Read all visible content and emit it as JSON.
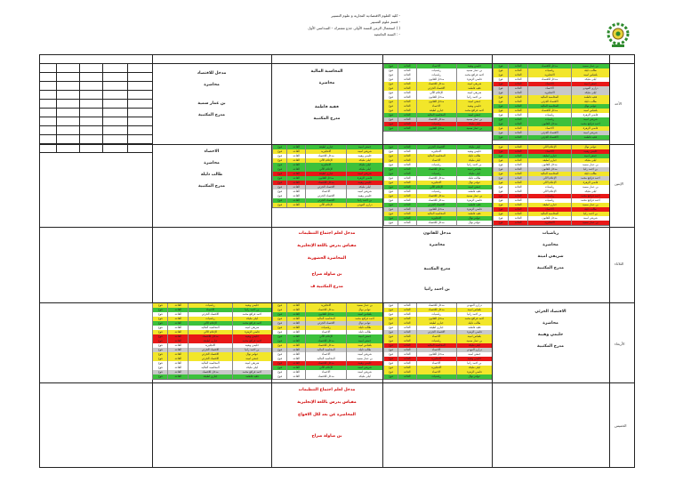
{
  "header": {
    "line1": "كلية العلوم الاقتصادية التجارية و علوم التسيير -",
    "line2": "قسم علوم التسيير -",
    "line3": "استعمال الزمن للسنة الأولى جذع مشترك - السداسي الأول ( )",
    "line4": "السنة الجامعية : -"
  },
  "days": [
    "الأحد",
    "الإثنين",
    "الثلاثاء",
    "الأربعاء",
    "الخميس"
  ],
  "lectures": {
    "sun_micro": [
      "مدخل للاقتصاد",
      "محاضرة",
      "بن عمار سمية",
      "مدرج المكتبية"
    ],
    "sun_accounting": [
      "المحاسبة المالية",
      "محاضرة",
      "فقيه فاطمة",
      "مدرج المكتبية"
    ],
    "mon_stats": [
      "الاحصاء",
      "محاضرة",
      "طالب دليلة",
      "مدرج المكتبية"
    ],
    "tue_mgmt": [
      "مدخل لعلم اجتماع التنظيمات",
      "مقياس يدرس باللغة الإنجليزية",
      "المحاضرة الحضورية",
      "بن صاولة صراح",
      "مدرج المكتبية ف"
    ],
    "tue_law": [
      "مدخل للقانون",
      "محاضرة",
      "مدرج المكتبية",
      "بن احمد رانيا"
    ],
    "tue_math": [
      "رياضيات",
      "محاضرة",
      "شريفي امينة",
      "مدرج المكتبية"
    ],
    "wed_macro": [
      "الاقتصاد الجزئي",
      "محاضرة",
      "حليمي وهيبة",
      "مدرج المكتبية"
    ],
    "thu_mgmt": [
      "مدخل لعلم اجتماع التنظيمات",
      "مقياس يدرس باللغة الإنجليزية",
      "المحاضرة عن بعد لكل الافواج",
      "بن صاولة صراح"
    ]
  },
  "tutorial": {
    "cells": [
      "فوج",
      "القاعة",
      "الاقتصاد الجزئي",
      "جباري لطيفة",
      "المحاسبة المالية",
      "مدخل للاقتصاد",
      "الاحصاء",
      "الانجليزية",
      "رياضيات",
      "مدخل للقانون",
      "الإعلام الآلي",
      "فقيه فاطمة",
      "بن عمار سمية",
      "طالب دليلة",
      "شريفي امينة",
      "حليمي وهيبة",
      "بن احمد رانيا",
      "عوامر نوال",
      "بلعباس امينة",
      "قاضي الزهرة",
      "ليلى مليكة",
      "احمد قراقع محمد",
      "دراري المهدي",
      "جمعي امينة"
    ]
  },
  "colors": {
    "green": "#3cc13c",
    "yellow": "#f2e62a",
    "red": "#e81717",
    "grey": "#c8c8c8",
    "white": "#ffffff",
    "lecture_red": "#d00000"
  }
}
